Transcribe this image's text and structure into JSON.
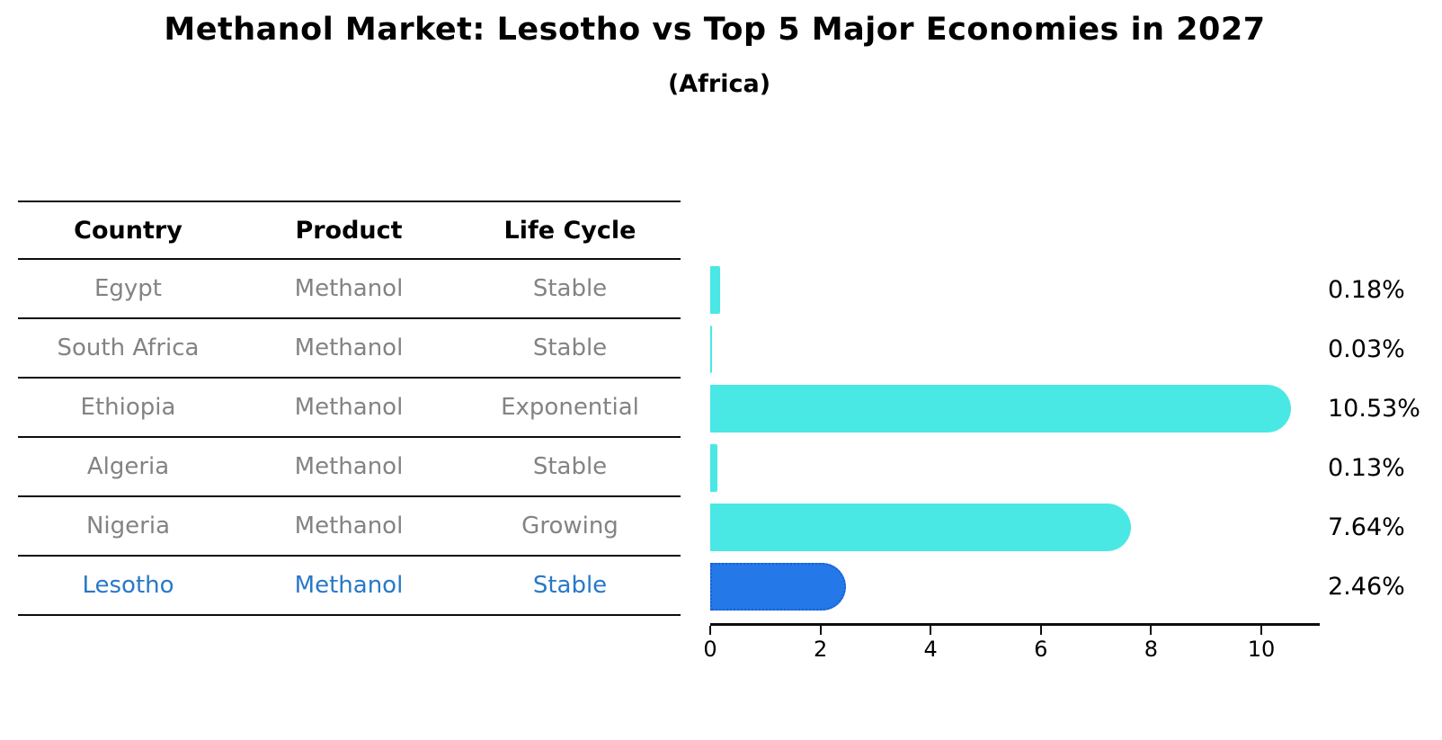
{
  "title": "Methanol Market: Lesotho vs Top 5 Major Economies in 2027",
  "subtitle": "(Africa)",
  "table": {
    "headers": [
      "Country",
      "Product",
      "Life Cycle"
    ],
    "rows": [
      {
        "country": "Egypt",
        "product": "Methanol",
        "life_cycle": "Stable",
        "highlight": false
      },
      {
        "country": "South Africa",
        "product": "Methanol",
        "life_cycle": "Stable",
        "highlight": false
      },
      {
        "country": "Ethiopia",
        "product": "Methanol",
        "life_cycle": "Exponential",
        "highlight": false
      },
      {
        "country": "Algeria",
        "product": "Methanol",
        "life_cycle": "Stable",
        "highlight": false
      },
      {
        "country": "Nigeria",
        "product": "Methanol",
        "life_cycle": "Growing",
        "highlight": false
      },
      {
        "country": "Lesotho",
        "product": "Methanol",
        "life_cycle": "Stable",
        "highlight": true
      }
    ]
  },
  "chart_data": {
    "type": "bar",
    "orientation": "horizontal",
    "title": "Methanol Market: Lesotho vs Top 5 Major Economies in 2027",
    "subtitle": "(Africa)",
    "categories": [
      "Egypt",
      "South Africa",
      "Ethiopia",
      "Algeria",
      "Nigeria",
      "Lesotho"
    ],
    "values": [
      0.18,
      0.03,
      10.53,
      0.13,
      7.64,
      2.46
    ],
    "labels": [
      "0.18%",
      "0.03%",
      "10.53%",
      "0.13%",
      "7.64%",
      "2.46%"
    ],
    "x_ticks": [
      "0",
      "2",
      "4",
      "6",
      "8",
      "10"
    ],
    "x_tick_values": [
      0,
      2,
      4,
      6,
      8,
      10
    ],
    "xlim": [
      0,
      11.06
    ],
    "grid": false,
    "legend": false,
    "bar_color": "#4ae8e4",
    "highlight_color": "#2478e8",
    "highlight_border_color": "#1a5fd6",
    "highlight_index": 5,
    "highlight_text_color": "#2878c8"
  }
}
